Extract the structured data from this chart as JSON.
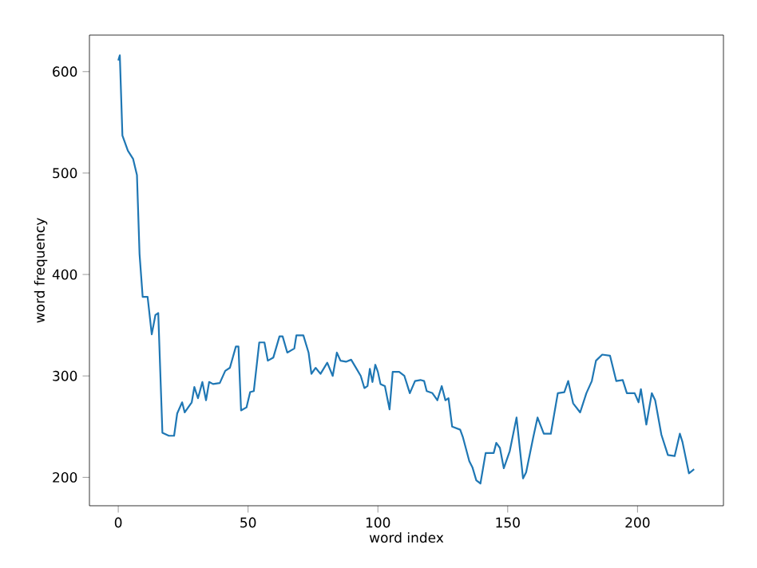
{
  "chart_data": {
    "type": "line",
    "xlabel": "word index",
    "ylabel": "word frequency",
    "x": [
      0,
      0.6,
      1.6,
      3.7,
      5.7,
      7.2,
      8.2,
      9.4,
      11.3,
      12.9,
      14.3,
      15.4,
      17,
      19.5,
      21.5,
      22.7,
      24.6,
      25.6,
      28.3,
      29.3,
      30.7,
      32.4,
      33.8,
      35,
      36.5,
      39.1,
      41.2,
      43,
      45.3,
      46.3,
      47.3,
      49.4,
      50.8,
      52.2,
      54.3,
      56.3,
      57.6,
      59.7,
      62.1,
      63.3,
      65.1,
      67.8,
      68.6,
      71.3,
      73.3,
      74.4,
      76,
      77.9,
      80.5,
      82.6,
      84.2,
      85.6,
      87.7,
      89.7,
      91.8,
      93.4,
      94.8,
      96,
      96.9,
      97.9,
      99,
      100,
      101,
      102.7,
      104.5,
      105.7,
      108.2,
      110.2,
      112.3,
      114.3,
      116.4,
      117.8,
      118.8,
      121,
      122.9,
      124.6,
      126,
      127.2,
      128.6,
      131.7,
      132.7,
      135.2,
      136.4,
      137.9,
      139.5,
      141.5,
      144.6,
      145.6,
      147,
      148.5,
      150.8,
      153.4,
      155.9,
      157.1,
      159.8,
      161.5,
      163.9,
      166.6,
      169.3,
      171.8,
      173.3,
      175.2,
      177.9,
      180.3,
      182.4,
      184,
      186.4,
      189.4,
      191.8,
      194.3,
      195.9,
      198.9,
      200.4,
      201.3,
      203.4,
      205.5,
      206.8,
      209.2,
      211.7,
      214.3,
      216.3,
      217.3,
      219.8,
      221.8
    ],
    "series": [
      {
        "color": "#1f77b4",
        "values": [
          611,
          616,
          537,
          522,
          514,
          498,
          420,
          378,
          378,
          341,
          360,
          362,
          244,
          241,
          241,
          263,
          274,
          264,
          274,
          289,
          278,
          294,
          276,
          294,
          292,
          293,
          305,
          308,
          329,
          329,
          266,
          269,
          284,
          285,
          333,
          333,
          315,
          318,
          339,
          339,
          323,
          327,
          340,
          340,
          323,
          302,
          308,
          302,
          313,
          300,
          323,
          315,
          314,
          316,
          307,
          300,
          288,
          290,
          307,
          294,
          311,
          304,
          292,
          290,
          267,
          304,
          304,
          300,
          283,
          295,
          296,
          295,
          285,
          283,
          276,
          290,
          276,
          278,
          250,
          247,
          240,
          216,
          210,
          197,
          194,
          224,
          224,
          234,
          229,
          209,
          226,
          259,
          199,
          205,
          239,
          259,
          243,
          243,
          283,
          284,
          295,
          273,
          264,
          283,
          295,
          315,
          321,
          320,
          295,
          296,
          283,
          283,
          274,
          287,
          252,
          283,
          276,
          242,
          222,
          221,
          243,
          235,
          204,
          208
        ]
      }
    ],
    "xlim": [
      -11.1,
      233.1
    ],
    "ylim": [
      172,
      636
    ],
    "xticks": [
      0,
      50,
      100,
      150,
      200
    ],
    "yticks": [
      200,
      300,
      400,
      500,
      600
    ],
    "grid": false,
    "marker": "none",
    "line_style": "solid"
  }
}
